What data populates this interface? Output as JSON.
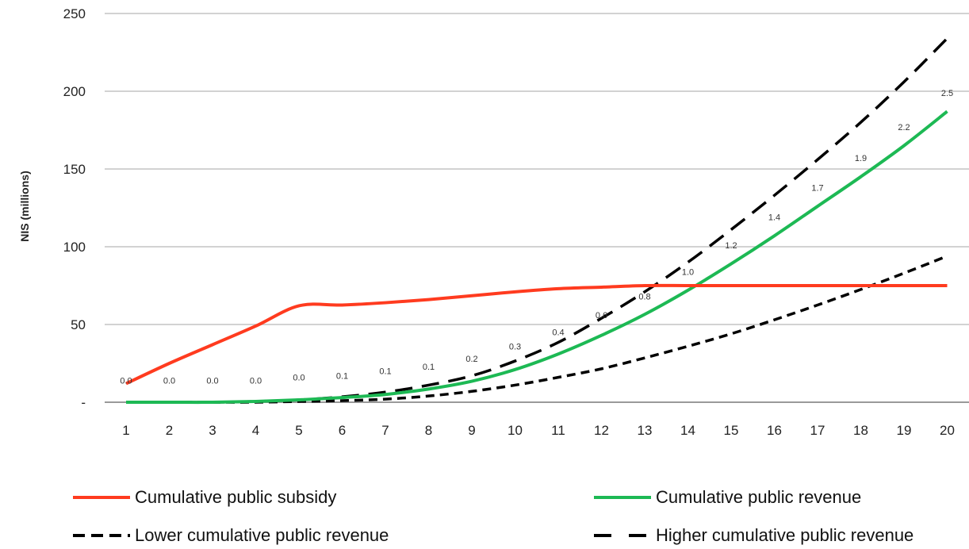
{
  "chart_data": {
    "type": "line",
    "ylabel": "NIS (millions)",
    "xlabel": "",
    "x": [
      1,
      2,
      3,
      4,
      5,
      6,
      7,
      8,
      9,
      10,
      11,
      12,
      13,
      14,
      15,
      16,
      17,
      18,
      19,
      20
    ],
    "ylim": [
      0,
      250
    ],
    "yticks": [
      {
        "value": 0,
        "label": "-"
      },
      {
        "value": 50,
        "label": "50"
      },
      {
        "value": 100,
        "label": "100"
      },
      {
        "value": 150,
        "label": "150"
      },
      {
        "value": 200,
        "label": "200"
      },
      {
        "value": 250,
        "label": "250"
      }
    ],
    "grid": true,
    "legend_position": "bottom",
    "series": [
      {
        "name": "Cumulative public subsidy",
        "color": "#ff3b1f",
        "style": "solid",
        "values": [
          12,
          25,
          37,
          49,
          62,
          62.5,
          64,
          66,
          68.5,
          71,
          73,
          74,
          75,
          75,
          75,
          75,
          75,
          75,
          75,
          75
        ]
      },
      {
        "name": "Cumulative public revenue",
        "color": "#1db954",
        "style": "solid",
        "values": [
          0,
          0,
          0,
          0.5,
          1.5,
          3,
          5,
          8.5,
          13.5,
          21,
          31,
          43,
          56.5,
          72,
          89,
          107,
          126,
          145,
          165,
          187
        ]
      },
      {
        "name": "Lower cumulative public revenue",
        "color": "#000000",
        "style": "short-dash",
        "values": [
          0,
          0,
          0,
          0,
          0.5,
          1,
          2,
          4,
          7,
          11,
          16,
          21.5,
          28.5,
          36,
          44,
          53,
          62.5,
          72.5,
          83,
          94
        ]
      },
      {
        "name": "Higher cumulative public revenue",
        "color": "#000000",
        "style": "long-dash",
        "values": [
          0,
          0,
          0,
          0.5,
          1.5,
          3.5,
          6.5,
          11,
          17,
          26.5,
          38.5,
          54,
          71,
          90,
          111,
          133,
          156,
          180,
          206,
          234
        ]
      }
    ],
    "data_labels": [
      {
        "x": 1,
        "text": "0.0",
        "y": 12
      },
      {
        "x": 2,
        "text": "0.0",
        "y": 12
      },
      {
        "x": 3,
        "text": "0.0",
        "y": 12
      },
      {
        "x": 4,
        "text": "0.0",
        "y": 12
      },
      {
        "x": 5,
        "text": "0.0",
        "y": 14
      },
      {
        "x": 6,
        "text": "0.1",
        "y": 15
      },
      {
        "x": 7,
        "text": "0.1",
        "y": 18
      },
      {
        "x": 8,
        "text": "0.1",
        "y": 21
      },
      {
        "x": 9,
        "text": "0.2",
        "y": 26
      },
      {
        "x": 10,
        "text": "0.3",
        "y": 34
      },
      {
        "x": 11,
        "text": "0.4",
        "y": 43
      },
      {
        "x": 12,
        "text": "0.6",
        "y": 54
      },
      {
        "x": 13,
        "text": "0.8",
        "y": 66
      },
      {
        "x": 14,
        "text": "1.0",
        "y": 82
      },
      {
        "x": 15,
        "text": "1.2",
        "y": 99
      },
      {
        "x": 16,
        "text": "1.4",
        "y": 117
      },
      {
        "x": 17,
        "text": "1.7",
        "y": 136
      },
      {
        "x": 18,
        "text": "1.9",
        "y": 155
      },
      {
        "x": 19,
        "text": "2.2",
        "y": 175
      },
      {
        "x": 20,
        "text": "2.5",
        "y": 197
      }
    ]
  }
}
